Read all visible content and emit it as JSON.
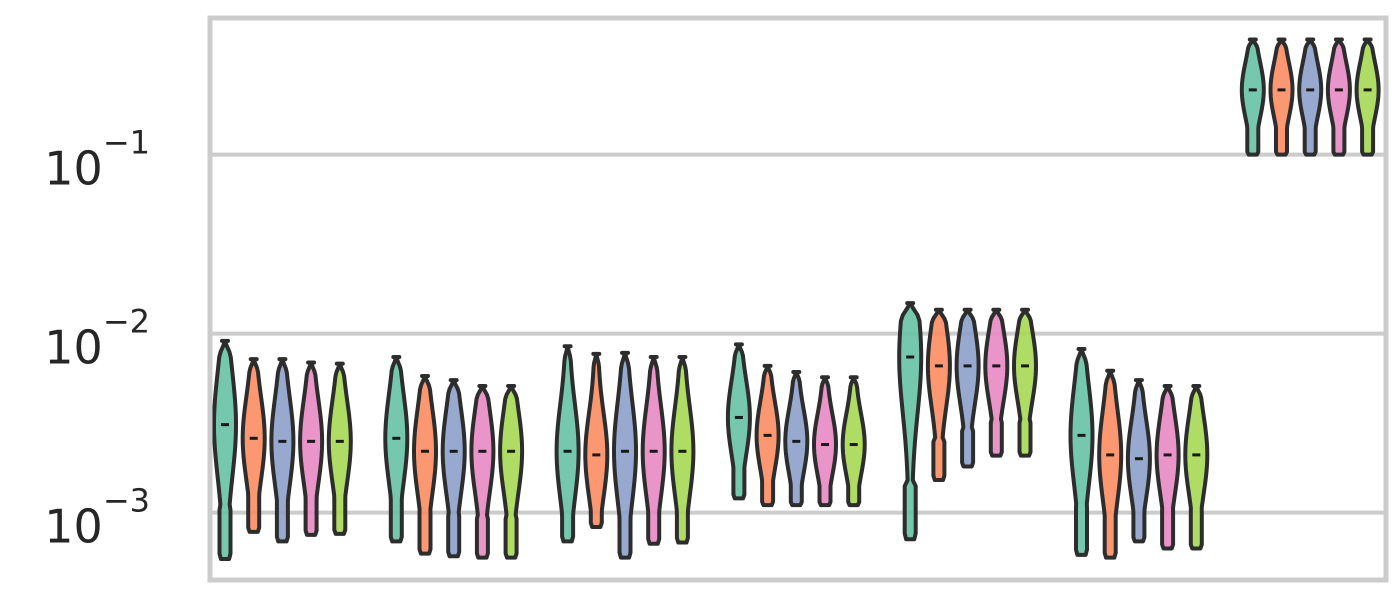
{
  "chart_data": {
    "type": "violin",
    "title": "",
    "xlabel": "",
    "ylabel": "",
    "y_scale": "log",
    "ylim": [
      0.00042,
      0.58
    ],
    "grid": true,
    "legend": "none",
    "y_ticks": [
      {
        "value": 0.001,
        "base": "10",
        "exponent": "−3"
      },
      {
        "value": 0.01,
        "base": "10",
        "exponent": "−2"
      },
      {
        "value": 0.1,
        "base": "10",
        "exponent": "−1"
      }
    ],
    "series_colors": [
      "#66c2a5",
      "#fc8d62",
      "#8da0cb",
      "#e78ac3",
      "#a6d854"
    ],
    "groups": [
      {
        "violins": [
          {
            "min": 0.00055,
            "max": 0.0091,
            "median": 0.0031
          },
          {
            "min": 0.00078,
            "max": 0.0072,
            "median": 0.0026
          },
          {
            "min": 0.00069,
            "max": 0.0072,
            "median": 0.0025
          },
          {
            "min": 0.00075,
            "max": 0.0069,
            "median": 0.0025
          },
          {
            "min": 0.00076,
            "max": 0.0068,
            "median": 0.0025
          }
        ]
      },
      {
        "violins": [
          {
            "min": 0.00069,
            "max": 0.0074,
            "median": 0.0026
          },
          {
            "min": 0.00059,
            "max": 0.0058,
            "median": 0.0022
          },
          {
            "min": 0.00057,
            "max": 0.0055,
            "median": 0.0022
          },
          {
            "min": 0.00056,
            "max": 0.0051,
            "median": 0.0022
          },
          {
            "min": 0.00056,
            "max": 0.0051,
            "median": 0.0022
          }
        ]
      },
      {
        "violins": [
          {
            "min": 0.00069,
            "max": 0.0085,
            "median": 0.0022
          },
          {
            "min": 0.00083,
            "max": 0.0077,
            "median": 0.0021
          },
          {
            "min": 0.00056,
            "max": 0.0078,
            "median": 0.0022
          },
          {
            "min": 0.00067,
            "max": 0.0074,
            "median": 0.0022
          },
          {
            "min": 0.00068,
            "max": 0.0074,
            "median": 0.0022
          }
        ]
      },
      {
        "violins": [
          {
            "min": 0.0012,
            "max": 0.0087,
            "median": 0.0034
          },
          {
            "min": 0.0011,
            "max": 0.0066,
            "median": 0.0027
          },
          {
            "min": 0.0011,
            "max": 0.0061,
            "median": 0.0025
          },
          {
            "min": 0.0011,
            "max": 0.0057,
            "median": 0.0024
          },
          {
            "min": 0.0011,
            "max": 0.0057,
            "median": 0.0024
          }
        ]
      },
      {
        "violins": [
          {
            "min": 0.00071,
            "max": 0.0148,
            "median": 0.0074
          },
          {
            "min": 0.00152,
            "max": 0.0136,
            "median": 0.0066
          },
          {
            "min": 0.00181,
            "max": 0.0136,
            "median": 0.0066
          },
          {
            "min": 0.00208,
            "max": 0.0136,
            "median": 0.0066
          },
          {
            "min": 0.00208,
            "max": 0.0136,
            "median": 0.0066
          }
        ]
      },
      {
        "violins": [
          {
            "min": 0.00058,
            "max": 0.0082,
            "median": 0.0027
          },
          {
            "min": 0.00056,
            "max": 0.0062,
            "median": 0.0021
          },
          {
            "min": 0.00069,
            "max": 0.0055,
            "median": 0.002
          },
          {
            "min": 0.00063,
            "max": 0.0051,
            "median": 0.0021
          },
          {
            "min": 0.00063,
            "max": 0.0051,
            "median": 0.0021
          }
        ]
      },
      {
        "violins": [
          {
            "min": 0.1,
            "max": 0.44,
            "median": 0.23
          },
          {
            "min": 0.1,
            "max": 0.44,
            "median": 0.23
          },
          {
            "min": 0.1,
            "max": 0.44,
            "median": 0.23
          },
          {
            "min": 0.1,
            "max": 0.44,
            "median": 0.23
          },
          {
            "min": 0.1,
            "max": 0.44,
            "median": 0.23
          }
        ]
      }
    ]
  }
}
